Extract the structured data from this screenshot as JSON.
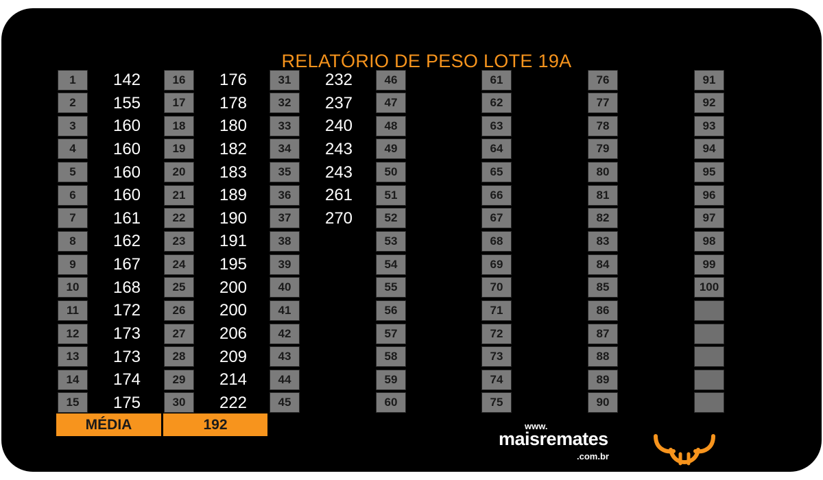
{
  "title": "RELATÓRIO DE PESO LOTE 19A",
  "colors": {
    "accent": "#f7941d",
    "cell": "#7b7b7b",
    "background": "#000000"
  },
  "groups": [
    {
      "rows": [
        {
          "n": "1",
          "v": "142"
        },
        {
          "n": "2",
          "v": "155"
        },
        {
          "n": "3",
          "v": "160"
        },
        {
          "n": "4",
          "v": "160"
        },
        {
          "n": "5",
          "v": "160"
        },
        {
          "n": "6",
          "v": "160"
        },
        {
          "n": "7",
          "v": "161"
        },
        {
          "n": "8",
          "v": "162"
        },
        {
          "n": "9",
          "v": "167"
        },
        {
          "n": "10",
          "v": "168"
        },
        {
          "n": "11",
          "v": "172"
        },
        {
          "n": "12",
          "v": "173"
        },
        {
          "n": "13",
          "v": "173"
        },
        {
          "n": "14",
          "v": "174"
        },
        {
          "n": "15",
          "v": "175"
        }
      ]
    },
    {
      "rows": [
        {
          "n": "16",
          "v": "176"
        },
        {
          "n": "17",
          "v": "178"
        },
        {
          "n": "18",
          "v": "180"
        },
        {
          "n": "19",
          "v": "182"
        },
        {
          "n": "20",
          "v": "183"
        },
        {
          "n": "21",
          "v": "189"
        },
        {
          "n": "22",
          "v": "190"
        },
        {
          "n": "23",
          "v": "191"
        },
        {
          "n": "24",
          "v": "195"
        },
        {
          "n": "25",
          "v": "200"
        },
        {
          "n": "26",
          "v": "200"
        },
        {
          "n": "27",
          "v": "206"
        },
        {
          "n": "28",
          "v": "209"
        },
        {
          "n": "29",
          "v": "214"
        },
        {
          "n": "30",
          "v": "222"
        }
      ]
    },
    {
      "rows": [
        {
          "n": "31",
          "v": "232"
        },
        {
          "n": "32",
          "v": "237"
        },
        {
          "n": "33",
          "v": "240"
        },
        {
          "n": "34",
          "v": "243"
        },
        {
          "n": "35",
          "v": "243"
        },
        {
          "n": "36",
          "v": "261"
        },
        {
          "n": "37",
          "v": "270"
        },
        {
          "n": "38",
          "v": ""
        },
        {
          "n": "39",
          "v": ""
        },
        {
          "n": "40",
          "v": ""
        },
        {
          "n": "41",
          "v": ""
        },
        {
          "n": "42",
          "v": ""
        },
        {
          "n": "43",
          "v": ""
        },
        {
          "n": "44",
          "v": ""
        },
        {
          "n": "45",
          "v": ""
        }
      ]
    },
    {
      "rows": [
        {
          "n": "46",
          "v": ""
        },
        {
          "n": "47",
          "v": ""
        },
        {
          "n": "48",
          "v": ""
        },
        {
          "n": "49",
          "v": ""
        },
        {
          "n": "50",
          "v": ""
        },
        {
          "n": "51",
          "v": ""
        },
        {
          "n": "52",
          "v": ""
        },
        {
          "n": "53",
          "v": ""
        },
        {
          "n": "54",
          "v": ""
        },
        {
          "n": "55",
          "v": ""
        },
        {
          "n": "56",
          "v": ""
        },
        {
          "n": "57",
          "v": ""
        },
        {
          "n": "58",
          "v": ""
        },
        {
          "n": "59",
          "v": ""
        },
        {
          "n": "60",
          "v": ""
        }
      ]
    },
    {
      "rows": [
        {
          "n": "61",
          "v": ""
        },
        {
          "n": "62",
          "v": ""
        },
        {
          "n": "63",
          "v": ""
        },
        {
          "n": "64",
          "v": ""
        },
        {
          "n": "65",
          "v": ""
        },
        {
          "n": "66",
          "v": ""
        },
        {
          "n": "67",
          "v": ""
        },
        {
          "n": "68",
          "v": ""
        },
        {
          "n": "69",
          "v": ""
        },
        {
          "n": "70",
          "v": ""
        },
        {
          "n": "71",
          "v": ""
        },
        {
          "n": "72",
          "v": ""
        },
        {
          "n": "73",
          "v": ""
        },
        {
          "n": "74",
          "v": ""
        },
        {
          "n": "75",
          "v": ""
        }
      ]
    },
    {
      "rows": [
        {
          "n": "76",
          "v": ""
        },
        {
          "n": "77",
          "v": ""
        },
        {
          "n": "78",
          "v": ""
        },
        {
          "n": "79",
          "v": ""
        },
        {
          "n": "80",
          "v": ""
        },
        {
          "n": "81",
          "v": ""
        },
        {
          "n": "82",
          "v": ""
        },
        {
          "n": "83",
          "v": ""
        },
        {
          "n": "84",
          "v": ""
        },
        {
          "n": "85",
          "v": ""
        },
        {
          "n": "86",
          "v": ""
        },
        {
          "n": "87",
          "v": ""
        },
        {
          "n": "88",
          "v": ""
        },
        {
          "n": "89",
          "v": ""
        },
        {
          "n": "90",
          "v": ""
        }
      ]
    },
    {
      "rows": [
        {
          "n": "91",
          "v": ""
        },
        {
          "n": "92",
          "v": ""
        },
        {
          "n": "93",
          "v": ""
        },
        {
          "n": "94",
          "v": ""
        },
        {
          "n": "95",
          "v": ""
        },
        {
          "n": "96",
          "v": ""
        },
        {
          "n": "97",
          "v": ""
        },
        {
          "n": "98",
          "v": ""
        },
        {
          "n": "99",
          "v": ""
        },
        {
          "n": "100",
          "v": ""
        },
        {
          "n": "",
          "v": ""
        },
        {
          "n": "",
          "v": ""
        },
        {
          "n": "",
          "v": ""
        },
        {
          "n": "",
          "v": ""
        },
        {
          "n": "",
          "v": ""
        }
      ]
    }
  ],
  "media": {
    "label": "MÉDIA",
    "value": "192"
  },
  "logo": {
    "www": "www.",
    "name": "maisremates",
    "domain": ".com.br",
    "icon": "bull-icon"
  }
}
